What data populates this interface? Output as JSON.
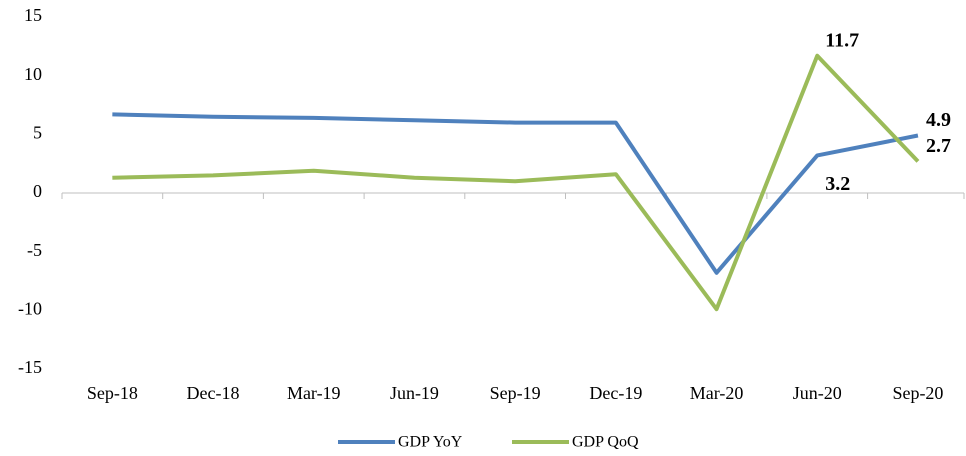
{
  "chart_data": {
    "type": "line",
    "categories": [
      "Sep-18",
      "Dec-18",
      "Mar-19",
      "Jun-19",
      "Sep-19",
      "Dec-19",
      "Mar-20",
      "Jun-20",
      "Sep-20"
    ],
    "series": [
      {
        "name": "GDP YoY",
        "color": "#4f81bd",
        "values": [
          6.7,
          6.5,
          6.4,
          6.2,
          6.0,
          6.0,
          -6.8,
          3.2,
          4.9
        ],
        "value_labels": [
          null,
          null,
          null,
          null,
          null,
          null,
          null,
          "3.2",
          "4.9"
        ]
      },
      {
        "name": "GDP QoQ",
        "color": "#9bbb59",
        "values": [
          1.3,
          1.5,
          1.9,
          1.3,
          1.0,
          1.6,
          -9.9,
          11.7,
          2.7
        ],
        "value_labels": [
          null,
          null,
          null,
          null,
          null,
          null,
          null,
          "11.7",
          "2.7"
        ]
      }
    ],
    "ylim": [
      -15,
      15
    ],
    "yticks": [
      -15,
      -10,
      -5,
      0,
      5,
      10,
      15
    ],
    "grid": false,
    "legend": "bottom"
  }
}
